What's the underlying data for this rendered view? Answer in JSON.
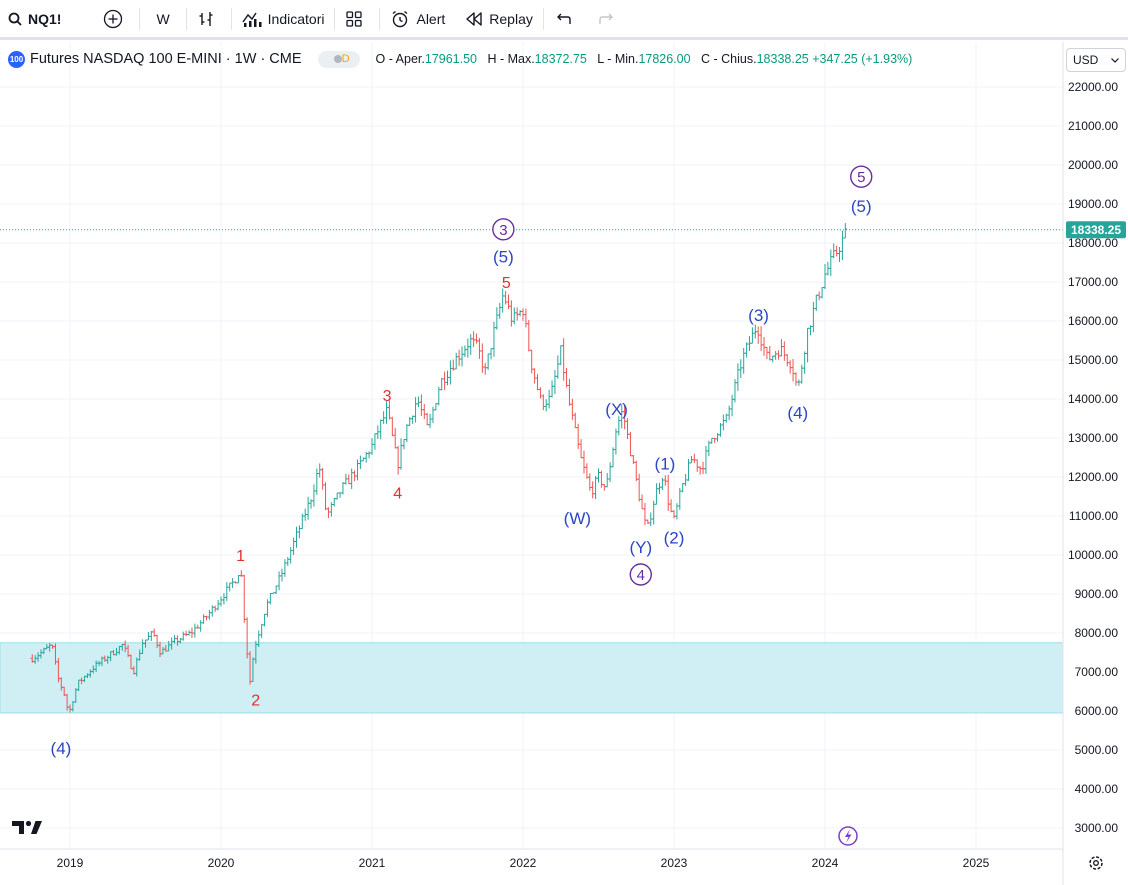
{
  "toolbar": {
    "symbol": "NQ1!",
    "interval": "W",
    "indicators_label": "Indicatori",
    "alert_label": "Alert",
    "replay_label": "Replay"
  },
  "legend": {
    "logo_text": "100",
    "title": "Futures NASDAQ 100 E-MINI · 1W · CME",
    "badge": "D",
    "open_label": "O - Aper.",
    "open": "17961.50",
    "high_label": "H - Max.",
    "high": "18372.75",
    "low_label": "L - Min.",
    "low": "17826.00",
    "close_label": "C - Chius.",
    "close": "18338.25",
    "change": "+347.25 (+1.93%)"
  },
  "currency": "USD",
  "colors": {
    "up": "#26a69a",
    "down": "#ef5350",
    "zone": "#cfeff5",
    "wave_blue": "#2b46c2",
    "wave_red": "#e0302f",
    "wave_purple": "#6a2c9c"
  },
  "chart_data": {
    "type": "ohlc",
    "ylim": [
      2600,
      22600
    ],
    "xlim": [
      2018.75,
      2025.5
    ],
    "y_ticks": [
      "3000.00",
      "4000.00",
      "5000.00",
      "6000.00",
      "7000.00",
      "8000.00",
      "9000.00",
      "10000.00",
      "11000.00",
      "12000.00",
      "13000.00",
      "14000.00",
      "15000.00",
      "16000.00",
      "17000.00",
      "18000.00",
      "19000.00",
      "20000.00",
      "21000.00",
      "22000.00"
    ],
    "x_ticks": [
      {
        "t": 2019,
        "label": "2019"
      },
      {
        "t": 2020,
        "label": "2020"
      },
      {
        "t": 2021,
        "label": "2021"
      },
      {
        "t": 2022,
        "label": "2022"
      },
      {
        "t": 2023,
        "label": "2023"
      },
      {
        "t": 2024,
        "label": "2024"
      },
      {
        "t": 2025,
        "label": "2025"
      }
    ],
    "last_price": {
      "value": 18338.25,
      "label": "18338.25"
    },
    "zone": {
      "from": 5950,
      "to": 7750
    },
    "price_path": [
      [
        2018.75,
        7350
      ],
      [
        2018.83,
        7550
      ],
      [
        2018.88,
        7700
      ],
      [
        2018.92,
        6850
      ],
      [
        2018.97,
        6350
      ],
      [
        2018.99,
        5900
      ],
      [
        2019.05,
        6700
      ],
      [
        2019.15,
        7100
      ],
      [
        2019.3,
        7550
      ],
      [
        2019.35,
        7700
      ],
      [
        2019.42,
        7000
      ],
      [
        2019.48,
        7750
      ],
      [
        2019.55,
        8000
      ],
      [
        2019.6,
        7500
      ],
      [
        2019.7,
        7800
      ],
      [
        2019.8,
        8000
      ],
      [
        2019.9,
        8400
      ],
      [
        2020.0,
        8900
      ],
      [
        2020.1,
        9400
      ],
      [
        2020.13,
        9700
      ],
      [
        2020.15,
        8600
      ],
      [
        2020.19,
        6700
      ],
      [
        2020.22,
        7600
      ],
      [
        2020.3,
        8700
      ],
      [
        2020.4,
        9500
      ],
      [
        2020.5,
        10500
      ],
      [
        2020.6,
        11500
      ],
      [
        2020.65,
        12300
      ],
      [
        2020.7,
        11000
      ],
      [
        2020.8,
        11700
      ],
      [
        2020.9,
        12200
      ],
      [
        2021.0,
        12800
      ],
      [
        2021.05,
        13300
      ],
      [
        2021.1,
        13700
      ],
      [
        2021.17,
        12300
      ],
      [
        2021.22,
        13200
      ],
      [
        2021.3,
        14000
      ],
      [
        2021.37,
        13200
      ],
      [
        2021.45,
        14400
      ],
      [
        2021.55,
        15000
      ],
      [
        2021.65,
        15500
      ],
      [
        2021.7,
        15300
      ],
      [
        2021.75,
        14700
      ],
      [
        2021.8,
        15600
      ],
      [
        2021.87,
        16700
      ],
      [
        2021.93,
        16000
      ],
      [
        2022.0,
        16300
      ],
      [
        2022.05,
        15000
      ],
      [
        2022.12,
        13900
      ],
      [
        2022.18,
        14000
      ],
      [
        2022.25,
        15200
      ],
      [
        2022.3,
        14000
      ],
      [
        2022.38,
        12500
      ],
      [
        2022.45,
        11600
      ],
      [
        2022.5,
        12000
      ],
      [
        2022.55,
        11700
      ],
      [
        2022.62,
        13300
      ],
      [
        2022.66,
        13700
      ],
      [
        2022.72,
        12500
      ],
      [
        2022.78,
        11300
      ],
      [
        2022.82,
        10600
      ],
      [
        2022.88,
        11600
      ],
      [
        2022.93,
        12100
      ],
      [
        2022.97,
        11200
      ],
      [
        2023.0,
        10900
      ],
      [
        2023.05,
        11700
      ],
      [
        2023.12,
        12500
      ],
      [
        2023.18,
        12200
      ],
      [
        2023.25,
        13000
      ],
      [
        2023.35,
        13500
      ],
      [
        2023.45,
        15000
      ],
      [
        2023.55,
        15900
      ],
      [
        2023.62,
        15000
      ],
      [
        2023.7,
        15300
      ],
      [
        2023.78,
        14900
      ],
      [
        2023.82,
        14200
      ],
      [
        2023.88,
        15700
      ],
      [
        2023.95,
        16600
      ],
      [
        2024.0,
        17200
      ],
      [
        2024.08,
        17800
      ],
      [
        2024.15,
        18338
      ]
    ],
    "annotations": [
      {
        "text": "(4)",
        "t": 2018.94,
        "v": 5050,
        "color": "blue",
        "circle": false
      },
      {
        "text": "1",
        "t": 2020.13,
        "v": 10000,
        "color": "red",
        "circle": false
      },
      {
        "text": "2",
        "t": 2020.23,
        "v": 6300,
        "color": "red",
        "circle": false
      },
      {
        "text": "3",
        "t": 2021.1,
        "v": 14100,
        "color": "red",
        "circle": false
      },
      {
        "text": "4",
        "t": 2021.17,
        "v": 11600,
        "color": "red",
        "circle": false
      },
      {
        "text": "5",
        "t": 2021.89,
        "v": 17000,
        "color": "red",
        "circle": false
      },
      {
        "text": "(5)",
        "t": 2021.87,
        "v": 17650,
        "color": "blue",
        "circle": false
      },
      {
        "text": "3",
        "t": 2021.87,
        "v": 18350,
        "color": "purple",
        "circle": true
      },
      {
        "text": "(W)",
        "t": 2022.36,
        "v": 10950,
        "color": "blue",
        "circle": false
      },
      {
        "text": "(X)",
        "t": 2022.62,
        "v": 13750,
        "color": "blue",
        "circle": false
      },
      {
        "text": "(Y)",
        "t": 2022.78,
        "v": 10200,
        "color": "blue",
        "circle": false
      },
      {
        "text": "4",
        "t": 2022.78,
        "v": 9500,
        "color": "purple",
        "circle": true
      },
      {
        "text": "(1)",
        "t": 2022.94,
        "v": 12350,
        "color": "blue",
        "circle": false
      },
      {
        "text": "(2)",
        "t": 2023.0,
        "v": 10450,
        "color": "blue",
        "circle": false
      },
      {
        "text": "(3)",
        "t": 2023.56,
        "v": 16150,
        "color": "blue",
        "circle": false
      },
      {
        "text": "(4)",
        "t": 2023.82,
        "v": 13650,
        "color": "blue",
        "circle": false
      },
      {
        "text": "(5)",
        "t": 2024.24,
        "v": 18950,
        "color": "blue",
        "circle": false
      },
      {
        "text": "5",
        "t": 2024.24,
        "v": 19700,
        "color": "purple",
        "circle": true
      }
    ]
  }
}
